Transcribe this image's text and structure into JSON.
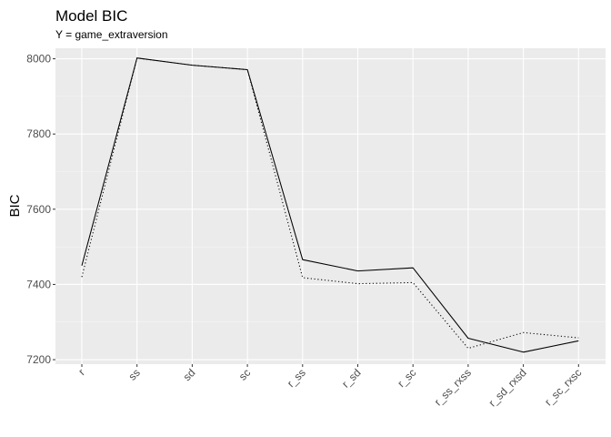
{
  "chart_data": {
    "type": "line",
    "title": "Model BIC",
    "subtitle": "Y = game_extraversion",
    "xlabel": "",
    "ylabel": "BIC",
    "categories": [
      "r",
      "ss",
      "sd",
      "sc",
      "r_ss",
      "r_sd",
      "r_sc",
      "r_ss_rxss",
      "r_sd_rxsd",
      "r_sc_rxsc"
    ],
    "yticks": [
      7200,
      7400,
      7600,
      7800,
      8000
    ],
    "ylim": [
      7188,
      8028
    ],
    "grid": true,
    "legend": "none",
    "series": [
      {
        "name": "solid",
        "style": "solid",
        "values": [
          7450,
          8002,
          7983,
          7971,
          7466,
          7436,
          7444,
          7257,
          7220,
          7250
        ]
      },
      {
        "name": "dotted",
        "style": "dotted",
        "values": [
          7420,
          8002,
          7983,
          7971,
          7418,
          7402,
          7405,
          7230,
          7272,
          7258
        ]
      }
    ]
  }
}
